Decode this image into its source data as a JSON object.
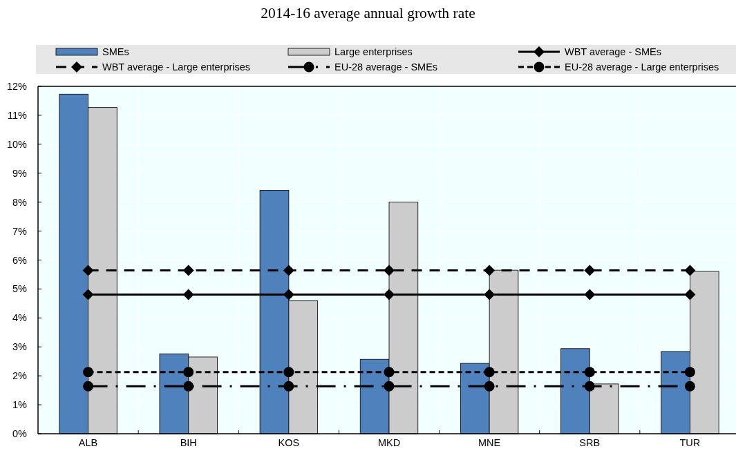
{
  "chart_data": {
    "type": "bar",
    "title": "2014-16 average annual growth rate",
    "categories": [
      "ALB",
      "BIH",
      "KOS",
      "MKD",
      "MNE",
      "SRB",
      "TUR"
    ],
    "series": [
      {
        "name": "SMEs",
        "color": "#4f81bd",
        "values": [
          11.73,
          2.76,
          8.41,
          2.57,
          2.43,
          2.94,
          2.84
        ]
      },
      {
        "name": "Large enterprises",
        "color": "#cccccc",
        "values": [
          11.27,
          2.65,
          4.59,
          8.0,
          5.65,
          1.72,
          5.61
        ]
      },
      {
        "name": "WBT average - SMEs",
        "type": "line",
        "color": "#000000",
        "marker": "diamond",
        "line_style": "solid",
        "values": [
          4.81,
          4.81,
          4.81,
          4.81,
          4.81,
          4.81,
          4.81
        ]
      },
      {
        "name": "WBT average - Large enterprises",
        "type": "line",
        "color": "#000000",
        "marker": "diamond",
        "line_style": "dashed",
        "values": [
          5.64,
          5.64,
          5.64,
          5.64,
          5.64,
          5.64,
          5.64
        ]
      },
      {
        "name": "EU-28 average - SMEs",
        "type": "line",
        "color": "#000000",
        "marker": "circle",
        "line_style": "dashdot",
        "values": [
          1.64,
          1.64,
          1.64,
          1.64,
          1.64,
          1.64,
          1.64
        ]
      },
      {
        "name": "EU-28 average - Large enterprises",
        "type": "line",
        "color": "#000000",
        "marker": "circle",
        "line_style": "dotted",
        "values": [
          2.13,
          2.13,
          2.13,
          2.13,
          2.13,
          2.13,
          2.13
        ]
      }
    ],
    "ylim": [
      0,
      12
    ],
    "yticks": [
      {
        "value": 0,
        "label": "0%"
      },
      {
        "value": 1,
        "label": "1%"
      },
      {
        "value": 2,
        "label": "2%"
      },
      {
        "value": 3,
        "label": "3%"
      },
      {
        "value": 4,
        "label": "4%"
      },
      {
        "value": 5,
        "label": "5%"
      },
      {
        "value": 6,
        "label": "6%"
      },
      {
        "value": 7,
        "label": "7%"
      },
      {
        "value": 8,
        "label": "8%"
      },
      {
        "value": 9,
        "label": "9%"
      },
      {
        "value": 10,
        "label": "10%"
      },
      {
        "value": 11,
        "label": "11%"
      },
      {
        "value": 12,
        "label": "12%"
      }
    ],
    "grid": true,
    "legend": "top"
  }
}
